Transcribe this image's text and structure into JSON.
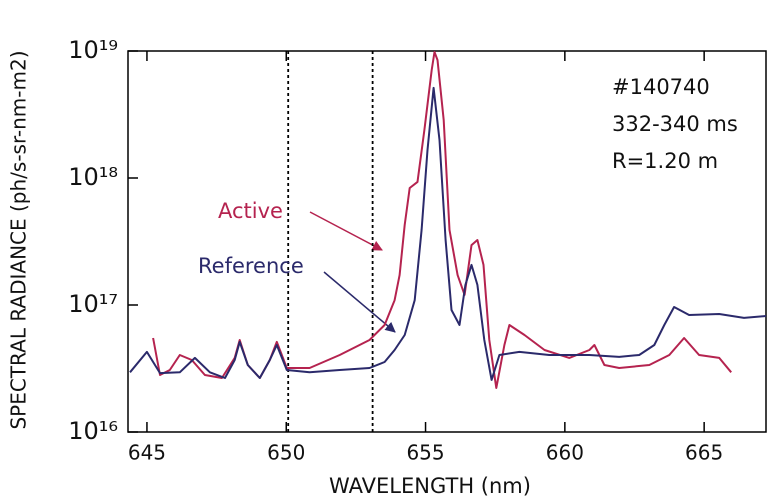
{
  "chart_data": {
    "type": "line",
    "xlabel": "WAVELENGTH (nm)",
    "ylabel": "SPECTRAL RADIANCE (ph/s-sr-nm-m2)",
    "xlim": [
      644.32,
      667.22
    ],
    "ylim": [
      1e+16,
      1e+19
    ],
    "yscale": "log",
    "xticks": [
      645,
      650,
      655,
      660,
      665
    ],
    "yticks": [
      {
        "value": 1e+16,
        "label": "10¹⁶"
      },
      {
        "value": 1e+17,
        "label": "10¹⁷"
      },
      {
        "value": 1e+18,
        "label": "10¹⁸"
      },
      {
        "value": 1e+19,
        "label": "10¹⁹"
      }
    ],
    "grid": false,
    "vlines": [
      650.07,
      653.1
    ],
    "annotations": [
      "#140740",
      "332-340 ms",
      "R=1.20 m"
    ],
    "series": [
      {
        "name": "Active",
        "color": "#b5234f",
        "x": [
          645.22,
          645.47,
          645.82,
          646.18,
          646.61,
          647.08,
          647.69,
          648.15,
          648.33,
          648.62,
          649.05,
          649.41,
          649.66,
          650.02,
          650.84,
          651.92,
          652.99,
          653.53,
          653.89,
          654.07,
          654.25,
          654.43,
          654.71,
          654.96,
          655.22,
          655.32,
          655.43,
          655.65,
          655.86,
          656.15,
          656.4,
          656.65,
          656.86,
          657.08,
          657.29,
          657.54,
          657.83,
          658.01,
          658.55,
          659.27,
          660.16,
          660.88,
          661.06,
          661.42,
          661.95,
          663.03,
          663.75,
          664.28,
          664.82,
          665.54,
          665.97
        ],
        "values": [
          5.5e+16,
          2.81e+16,
          3.08e+16,
          4.04e+16,
          3.69e+16,
          2.81e+16,
          2.66e+16,
          3.83e+16,
          5.3e+16,
          3.37e+16,
          2.66e+16,
          3.69e+16,
          5.12e+16,
          3.19e+16,
          3.19e+16,
          4.04e+16,
          5.3e+16,
          6.96e+16,
          1.09e+17,
          1.72e+17,
          4.27e+17,
          8.34e+17,
          9.31e+17,
          2.39e+18,
          7.08e+18,
          9.82e+18,
          8.49e+18,
          2.86e+18,
          3.9e+17,
          1.72e+17,
          1.2e+17,
          2.96e+17,
          3.25e+17,
          2.07e+17,
          5.3e+16,
          2.22e+16,
          4.84e+16,
          6.96e+16,
          5.8e+16,
          4.42e+16,
          3.83e+16,
          4.42e+16,
          4.84e+16,
          3.37e+16,
          3.19e+16,
          3.37e+16,
          4.04e+16,
          5.5e+16,
          4.04e+16,
          3.83e+16,
          2.95e+16
        ]
      },
      {
        "name": "Reference",
        "color": "#2b2a6b",
        "x": [
          644.39,
          645.0,
          645.47,
          646.18,
          646.72,
          647.26,
          647.8,
          648.15,
          648.33,
          648.62,
          649.05,
          649.41,
          649.66,
          650.02,
          650.84,
          651.92,
          652.99,
          653.53,
          653.89,
          654.25,
          654.61,
          654.86,
          655.07,
          655.29,
          655.5,
          655.72,
          655.93,
          656.22,
          656.43,
          656.65,
          656.86,
          657.11,
          657.37,
          657.65,
          658.37,
          659.44,
          660.88,
          661.95,
          662.67,
          663.21,
          663.57,
          663.92,
          664.46,
          665.54,
          666.43,
          667.22
        ],
        "values": [
          2.95e+16,
          4.27e+16,
          2.91e+16,
          2.95e+16,
          3.83e+16,
          2.95e+16,
          2.66e+16,
          3.69e+16,
          5.12e+16,
          3.37e+16,
          2.66e+16,
          3.69e+16,
          4.84e+16,
          3.08e+16,
          2.95e+16,
          3.08e+16,
          3.19e+16,
          3.56e+16,
          4.42e+16,
          5.8e+16,
          1.09e+17,
          3.9e+17,
          1.66e+18,
          5.12e+18,
          1.99e+18,
          3.25e+17,
          9.14e+16,
          6.96e+16,
          1.44e+17,
          2.07e+17,
          1.44e+17,
          5.3e+16,
          2.57e+16,
          4.04e+16,
          4.27e+16,
          4.04e+16,
          4.04e+16,
          3.9e+16,
          4.04e+16,
          4.84e+16,
          6.96e+16,
          9.64e+16,
          8.34e+16,
          8.49e+16,
          7.91e+16,
          8.19e+16
        ]
      }
    ]
  }
}
